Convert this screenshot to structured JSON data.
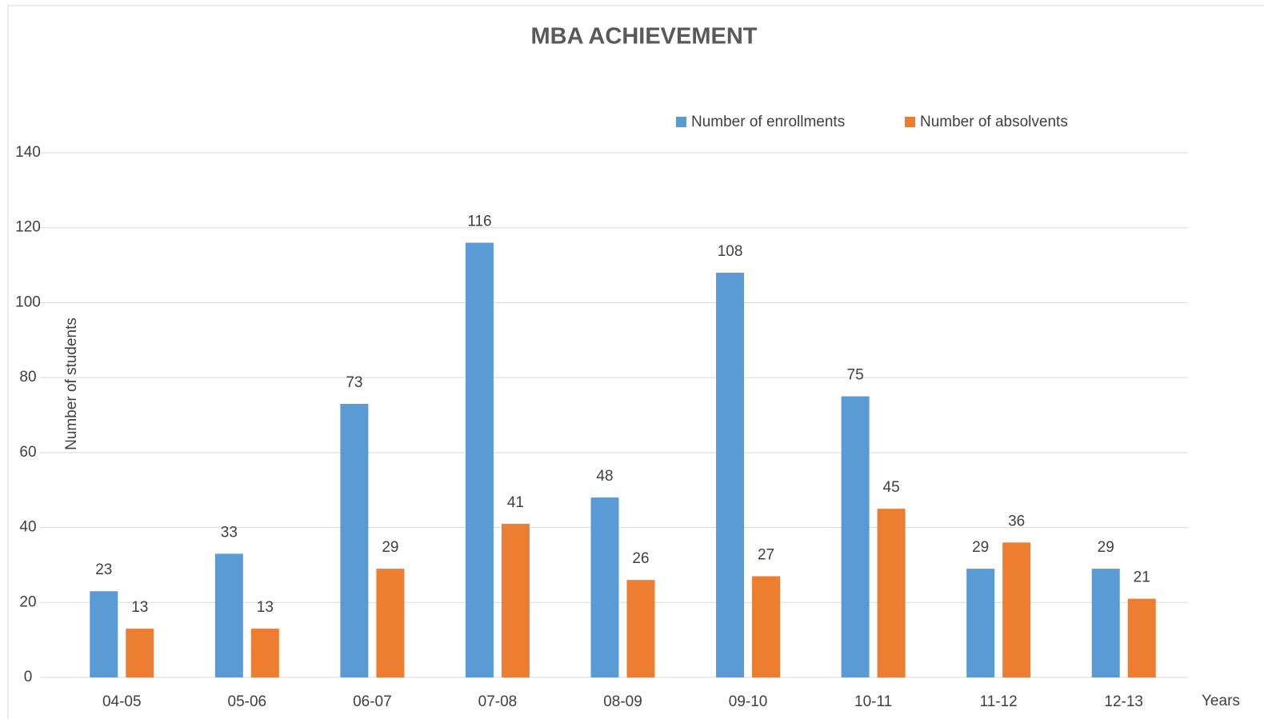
{
  "chart_data": {
    "type": "bar",
    "title": "MBA ACHIEVEMENT",
    "y_label": "Number of students",
    "x_label": "Years",
    "categories": [
      "04-05",
      "05-06",
      "06-07",
      "07-08",
      "08-09",
      "09-10",
      "10-11",
      "11-12",
      "12-13"
    ],
    "series": [
      {
        "name": "Number of enrollments",
        "color": "#5b9bd5",
        "values": [
          23,
          33,
          73,
          116,
          48,
          108,
          75,
          29,
          29
        ]
      },
      {
        "name": "Number of absolvents",
        "color": "#ed7d31",
        "values": [
          13,
          13,
          29,
          41,
          26,
          27,
          45,
          36,
          21
        ]
      }
    ],
    "ylim": [
      0,
      140
    ],
    "yticks": [
      0,
      20,
      40,
      60,
      80,
      100,
      120,
      140
    ],
    "grid": true,
    "legend": "top-right",
    "data_labels": true
  }
}
